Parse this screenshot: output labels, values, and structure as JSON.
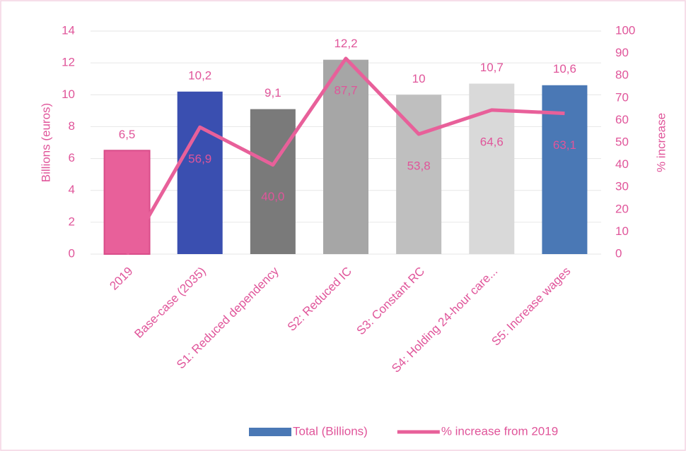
{
  "chart_data": {
    "type": "bar",
    "categories": [
      "2019",
      "Base-case (2035)",
      "S1: Reduced dependency",
      "S2: Reduced IC",
      "S3: Constant RC",
      "S4: Holding 24-hour care...",
      "S5: Increase wages"
    ],
    "series": [
      {
        "name": "Total (Billions)",
        "type": "bar",
        "color": "#4a78b5",
        "colors": [
          "#e8609a",
          "#3a4fb0",
          "#7a7a7a",
          "#a6a6a6",
          "#bfbfbf",
          "#d9d9d9",
          "#4a78b5"
        ],
        "values": [
          6.5,
          10.2,
          9.1,
          12.2,
          10,
          10.7,
          10.6
        ],
        "value_labels": [
          "6,5",
          "10,2",
          "9,1",
          "12,2",
          "10",
          "10,7",
          "10,6"
        ]
      },
      {
        "name": "% increase from 2019",
        "type": "line",
        "axis": "y2",
        "color": "#e8609a",
        "values": [
          0,
          56.9,
          40.0,
          87.7,
          53.8,
          64.6,
          63.1
        ],
        "value_labels": [
          null,
          "56,9",
          "40,0",
          "87,7",
          "53,8",
          "64,6",
          "63,1"
        ]
      }
    ],
    "ylabel": "Billions (euros)",
    "y2label": "% increase",
    "ylim": [
      0,
      14
    ],
    "yticks": [
      0,
      2,
      4,
      6,
      8,
      10,
      12,
      14
    ],
    "y2lim": [
      0,
      100
    ],
    "y2ticks": [
      0,
      10,
      20,
      30,
      40,
      50,
      60,
      70,
      80,
      90,
      100
    ],
    "grid": true,
    "legend": "bottom"
  }
}
